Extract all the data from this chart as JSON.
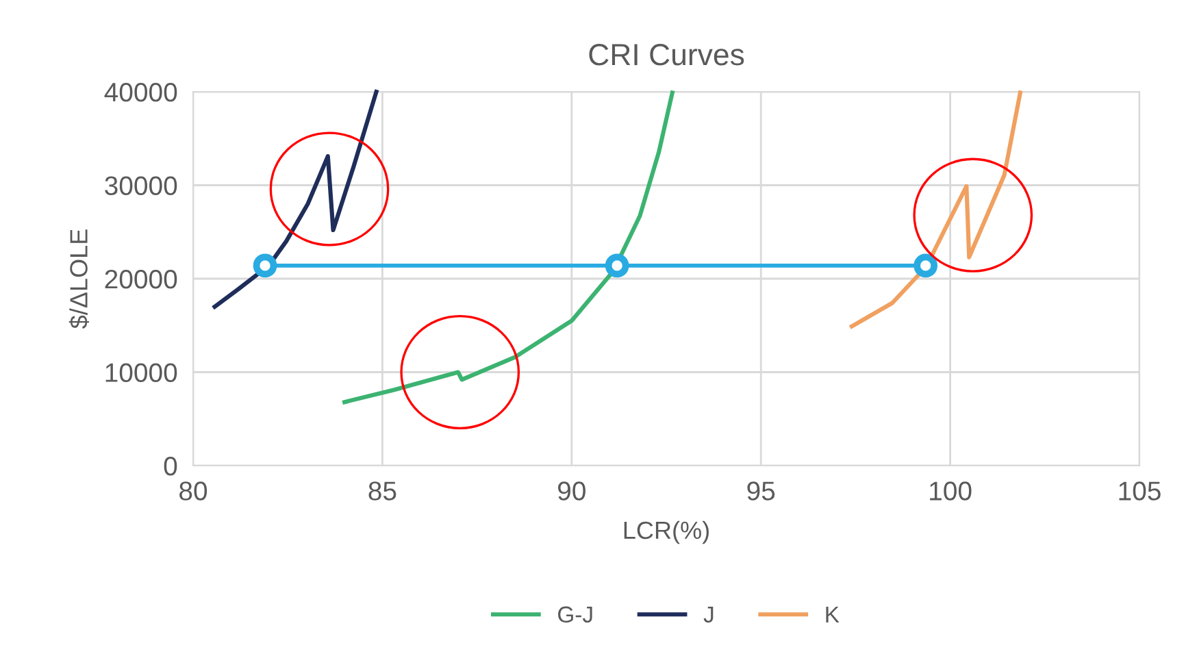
{
  "chart_data": {
    "type": "line",
    "title": "CRI Curves",
    "xlabel": "LCR(%)",
    "ylabel": "$/ΔLOLE",
    "xlim": [
      80,
      105
    ],
    "xticks": [
      80,
      85,
      90,
      95,
      100,
      105
    ],
    "ylim": [
      0,
      40000
    ],
    "yticks": [
      0,
      10000,
      20000,
      30000,
      40000
    ],
    "grid": true,
    "legend": "bottom",
    "series": [
      {
        "name": "G-J",
        "color": "#3cb371",
        "x": [
          84.0,
          85.3,
          87.0,
          87.1,
          88.5,
          90.0,
          91.1,
          91.8,
          92.3,
          92.66
        ],
        "values": [
          6800,
          8100,
          10000,
          9200,
          11600,
          15500,
          20800,
          26700,
          33500,
          39900
        ]
      },
      {
        "name": "J",
        "color": "#1f2d5a",
        "x": [
          80.57,
          81.2,
          82.0,
          82.46,
          83.03,
          83.56,
          83.7,
          84.24,
          84.84
        ],
        "values": [
          17000,
          18900,
          21400,
          24000,
          28000,
          33100,
          25200,
          32000,
          40000
        ]
      },
      {
        "name": "K",
        "color": "#f0a060",
        "x": [
          97.4,
          98.47,
          99.37,
          100.43,
          100.5,
          101.43,
          101.85
        ],
        "values": [
          14900,
          17400,
          21300,
          29900,
          22300,
          31100,
          39900
        ]
      },
      {
        "color": "#29abe2",
        "x": [
          81.9,
          91.2,
          99.35
        ],
        "values": [
          21400,
          21400,
          21400
        ],
        "marker": "circle"
      }
    ]
  }
}
